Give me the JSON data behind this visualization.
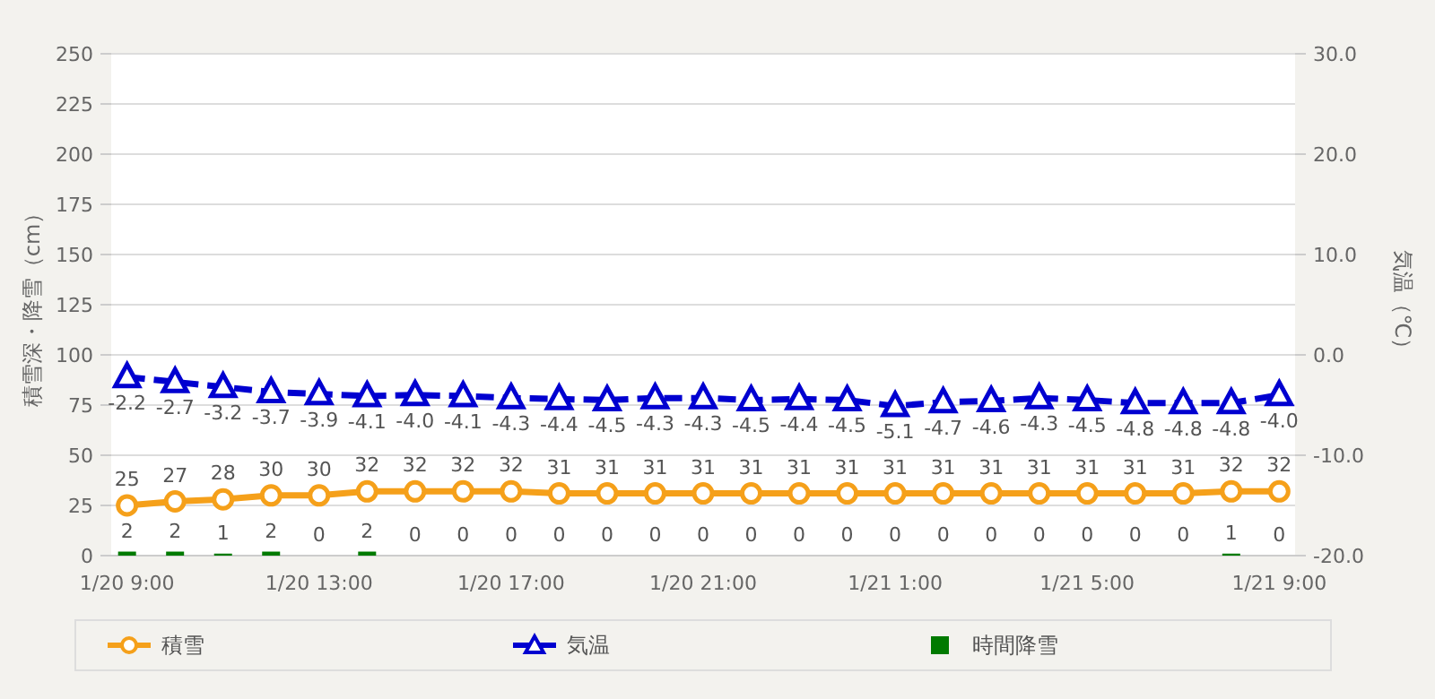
{
  "chart_data": {
    "type": "line",
    "ylabel": "積雪深・降雪（cm）",
    "y2label": "気温（℃）",
    "categories": [
      "1/20 9:00",
      null,
      null,
      null,
      "1/20 13:00",
      null,
      null,
      null,
      "1/20 17:00",
      null,
      null,
      null,
      "1/20 21:00",
      null,
      null,
      null,
      "1/21 1:00",
      null,
      null,
      null,
      "1/21 5:00",
      null,
      null,
      null,
      "1/21 9:00"
    ],
    "series": [
      {
        "name": "積雪",
        "color": "#f5a01a",
        "marker": "circle",
        "line_style": "solid",
        "values": [
          25,
          27,
          28,
          30,
          30,
          32,
          32,
          32,
          32,
          31,
          31,
          31,
          31,
          31,
          31,
          31,
          31,
          31,
          31,
          31,
          31,
          31,
          31,
          32,
          32
        ]
      },
      {
        "name": "気温",
        "axis": "y2",
        "color": "#0000d0",
        "marker": "triangle",
        "line_style": "dashed",
        "values": [
          -2.2,
          -2.7,
          -3.2,
          -3.7,
          -3.9,
          -4.1,
          -4.0,
          -4.1,
          -4.3,
          -4.4,
          -4.5,
          -4.3,
          -4.3,
          -4.5,
          -4.4,
          -4.5,
          -5.1,
          -4.7,
          -4.6,
          -4.3,
          -4.5,
          -4.8,
          -4.8,
          -4.8,
          -4.0
        ],
        "value_labels": [
          "-2.2",
          "-2.7",
          "-3.2",
          "-3.7",
          "-3.9",
          "-4.1",
          "-4.0",
          "-4.1",
          "-4.3",
          "-4.4",
          "-4.5",
          "-4.3",
          "-4.3",
          "-4.5",
          "-4.4",
          "-4.5",
          "-5.1",
          "-4.7",
          "-4.6",
          "-4.3",
          "-4.5",
          "-4.8",
          "-4.8",
          "-4.8",
          "-4.0"
        ]
      },
      {
        "name": "時間降雪",
        "type": "bar",
        "color": "#007a00",
        "values": [
          2,
          2,
          1,
          2,
          0,
          2,
          0,
          0,
          0,
          0,
          0,
          0,
          0,
          0,
          0,
          0,
          0,
          0,
          0,
          0,
          0,
          0,
          0,
          1,
          0
        ]
      }
    ],
    "ylim": [
      0,
      250
    ],
    "yticks": [
      0,
      25,
      50,
      75,
      100,
      125,
      150,
      175,
      200,
      225,
      250
    ],
    "y2lim": [
      -20,
      30
    ],
    "y2ticks": [
      {
        "value": -20,
        "label": "-20.0"
      },
      {
        "value": -10,
        "label": "-10.0"
      },
      {
        "value": 0,
        "label": "0.0"
      },
      {
        "value": 10,
        "label": "10.0"
      },
      {
        "value": 20,
        "label": "20.0"
      },
      {
        "value": 30,
        "label": "30.0"
      }
    ],
    "grid": "y",
    "legend": "bottom",
    "data_labels": true
  }
}
